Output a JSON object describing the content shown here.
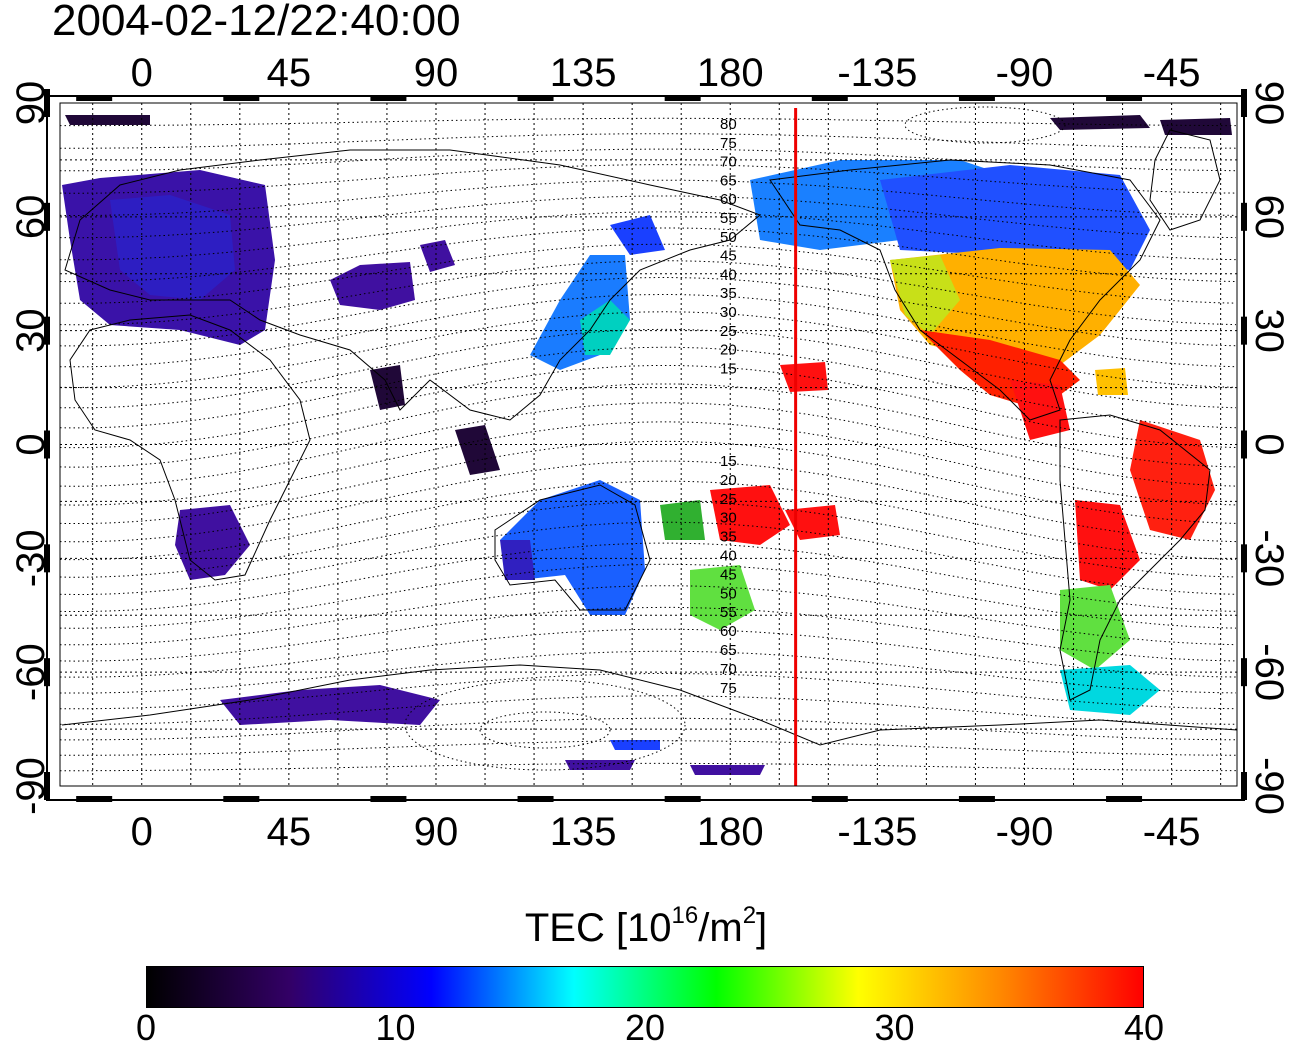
{
  "title": "2004-02-12/22:40:00",
  "map": {
    "lon_ticks_top": [
      "0",
      "45",
      "90",
      "135",
      "180",
      "-135",
      "-90",
      "-45"
    ],
    "lon_ticks_bottom": [
      "0",
      "45",
      "90",
      "135",
      "180",
      "-135",
      "-90",
      "-45"
    ],
    "lat_ticks_left": [
      "90",
      "60",
      "30",
      "0",
      "-30",
      "-60",
      "-90"
    ],
    "lat_ticks_right": [
      "90",
      "60",
      "30",
      "0",
      "-30",
      "-60",
      "-90"
    ],
    "lon_range": [
      -25,
      335
    ],
    "lat_range": [
      -90,
      90
    ],
    "terminator_longitude": -160,
    "terminator_color": "#ee0000",
    "contour_labels_north": [
      "80",
      "75",
      "70",
      "65",
      "60",
      "55",
      "50",
      "45",
      "40",
      "35",
      "30",
      "25",
      "20",
      "15"
    ],
    "contour_labels_south": [
      "15",
      "20",
      "25",
      "30",
      "35",
      "40",
      "45",
      "50",
      "55",
      "60",
      "65",
      "70",
      "75"
    ]
  },
  "colorbar": {
    "title_prefix": "TEC  [10",
    "title_exp": "16",
    "title_mid": "/m",
    "title_exp2": "2",
    "title_suffix": "]",
    "min": 0,
    "max": 40,
    "ticks": [
      "0",
      "10",
      "20",
      "30",
      "40"
    ],
    "colors": [
      "#000000",
      "#330066",
      "#0000ff",
      "#00ffff",
      "#00ff00",
      "#ffff00",
      "#ff8800",
      "#ff0000"
    ]
  }
}
